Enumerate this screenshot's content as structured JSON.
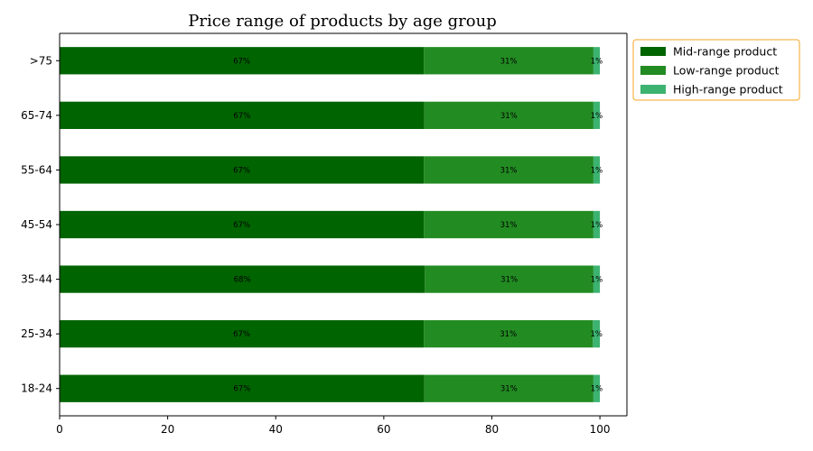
{
  "chart_data": {
    "type": "bar",
    "orientation": "horizontal",
    "stacked": true,
    "title": "Price range of products by age group",
    "xlabel": "",
    "ylabel": "",
    "xlim": [
      0,
      105
    ],
    "x_ticks": [
      0,
      20,
      40,
      60,
      80,
      100
    ],
    "grid": false,
    "legend_placement": "outside top-right",
    "legend_border_color": "#f5a623",
    "categories": [
      "18-24",
      "25-34",
      "35-44",
      "45-54",
      "55-64",
      "65-74",
      ">75"
    ],
    "series": [
      {
        "name": "Mid-range product",
        "color": "#006400",
        "values": [
          67.5,
          67.4,
          67.6,
          67.4,
          67.4,
          67.5,
          67.4
        ],
        "labels": [
          "67%",
          "67%",
          "68%",
          "67%",
          "67%",
          "67%",
          "67%"
        ]
      },
      {
        "name": "Low-range product",
        "color": "#228b22",
        "values": [
          31.3,
          31.3,
          31.2,
          31.4,
          31.4,
          31.3,
          31.4
        ],
        "labels": [
          "31%",
          "31%",
          "31%",
          "31%",
          "31%",
          "31%",
          "31%"
        ]
      },
      {
        "name": "High-range product",
        "color": "#3cb371",
        "values": [
          1.2,
          1.3,
          1.2,
          1.2,
          1.2,
          1.2,
          1.2
        ],
        "labels": [
          "1%",
          "1%",
          "1%",
          "1%",
          "1%",
          "1%",
          "1%"
        ]
      }
    ]
  }
}
